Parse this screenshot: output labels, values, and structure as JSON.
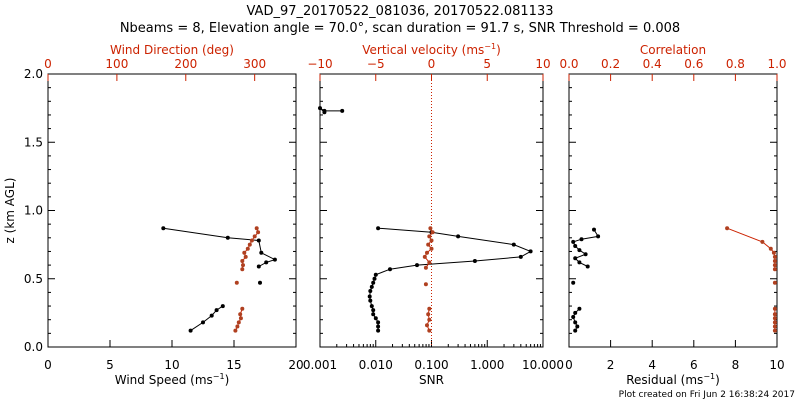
{
  "title_line1": "VAD_97_20170522_081036, 20170522.081133",
  "title_line2": "Nbeams = 8, Elevation angle = 70.0°, scan duration = 91.7 s, SNR Threshold = 0.008",
  "footer": "Plot created on Fri Jun  2 16:38:24 2017",
  "colors": {
    "black": "#000000",
    "red": "#cc2200",
    "point_red": "#b04020"
  },
  "chart_data": [
    {
      "type": "line",
      "panel": "wind",
      "ylabel": "z (km AGL)",
      "ylim": [
        0,
        2.0
      ],
      "y_ticks": [
        "0.0",
        "0.5",
        "1.0",
        "1.5",
        "2.0"
      ],
      "bottom_axis": {
        "label": "Wind Speed (ms",
        "label_sup": "−1",
        "label_end": ")",
        "range": [
          0,
          20
        ],
        "ticks": [
          "0",
          "5",
          "10",
          "15",
          "20"
        ]
      },
      "top_axis": {
        "label": "Wind Direction (deg)",
        "range": [
          0,
          360
        ],
        "ticks": [
          "0",
          "100",
          "200",
          "300"
        ]
      },
      "series": [
        {
          "values": "wind_speed",
          "segments": [
            [
              [
                11.5,
                0.12
              ],
              [
                12.5,
                0.18
              ],
              [
                13.2,
                0.23
              ],
              [
                13.6,
                0.27
              ],
              [
                14.1,
                0.3
              ]
            ],
            [
              [
                17.1,
                0.47
              ]
            ],
            [
              [
                17.0,
                0.59
              ],
              [
                17.6,
                0.62
              ],
              [
                18.3,
                0.64
              ],
              [
                17.2,
                0.69
              ],
              [
                17.0,
                0.78
              ],
              [
                14.5,
                0.8
              ],
              [
                9.3,
                0.87
              ]
            ]
          ]
        },
        {
          "values": "wind_direction",
          "segments": [
            [
              [
                272,
                0.12
              ],
              [
                275,
                0.15
              ],
              [
                277,
                0.18
              ],
              [
                280,
                0.21
              ],
              [
                279,
                0.24
              ],
              [
                282,
                0.28
              ]
            ],
            [
              [
                274,
                0.47
              ]
            ],
            [
              [
                282,
                0.57
              ],
              [
                283,
                0.6
              ],
              [
                282,
                0.63
              ],
              [
                287,
                0.66
              ],
              [
                285,
                0.69
              ],
              [
                290,
                0.72
              ],
              [
                293,
                0.75
              ],
              [
                296,
                0.78
              ],
              [
                300,
                0.81
              ],
              [
                305,
                0.84
              ],
              [
                303,
                0.87
              ]
            ]
          ]
        }
      ]
    },
    {
      "type": "line",
      "panel": "vertical",
      "bottom_axis": {
        "label": "SNR",
        "scale": "log",
        "range": [
          0.001,
          10
        ],
        "ticks": [
          "0.001",
          "0.010",
          "0.100",
          "1.000",
          "10.000"
        ]
      },
      "top_axis": {
        "label": "Vertical velocity (ms",
        "label_sup": "−1",
        "label_end": ")",
        "range": [
          -10,
          10
        ],
        "ticks": [
          "−10",
          "−5",
          "0",
          "5",
          "10"
        ]
      },
      "zero_line": 0,
      "series": [
        {
          "values": "snr",
          "segments": [
            [
              [
                0.0025,
                1.73
              ],
              [
                0.0012,
                1.73
              ],
              [
                0.001,
                1.75
              ],
              [
                0.0012,
                1.72
              ]
            ],
            [
              [
                0.011,
                0.12
              ],
              [
                0.011,
                0.15
              ],
              [
                0.011,
                0.18
              ],
              [
                0.01,
                0.21
              ],
              [
                0.009,
                0.24
              ],
              [
                0.009,
                0.27
              ],
              [
                0.0085,
                0.3
              ],
              [
                0.008,
                0.34
              ],
              [
                0.0078,
                0.37
              ],
              [
                0.008,
                0.41
              ],
              [
                0.0085,
                0.44
              ],
              [
                0.009,
                0.47
              ],
              [
                0.0095,
                0.5
              ],
              [
                0.01,
                0.53
              ],
              [
                0.018,
                0.57
              ],
              [
                0.055,
                0.6
              ],
              [
                0.6,
                0.63
              ],
              [
                4.0,
                0.66
              ],
              [
                6.0,
                0.7
              ],
              [
                3.0,
                0.75
              ],
              [
                0.3,
                0.81
              ],
              [
                0.1,
                0.84
              ],
              [
                0.011,
                0.87
              ]
            ]
          ]
        },
        {
          "values": "vertical_velocity",
          "segments": [
            [
              [
                -0.2,
                0.12
              ],
              [
                -0.4,
                0.16
              ],
              [
                -0.2,
                0.2
              ],
              [
                -0.3,
                0.24
              ],
              [
                -0.2,
                0.28
              ]
            ],
            [
              [
                -0.5,
                0.46
              ]
            ],
            [
              [
                -0.5,
                0.58
              ],
              [
                -0.2,
                0.62
              ],
              [
                -0.6,
                0.66
              ],
              [
                -0.4,
                0.69
              ],
              [
                0.0,
                0.72
              ],
              [
                -0.3,
                0.75
              ],
              [
                0.0,
                0.78
              ],
              [
                -0.2,
                0.81
              ],
              [
                0.1,
                0.84
              ],
              [
                -0.1,
                0.87
              ]
            ]
          ]
        }
      ]
    },
    {
      "type": "line",
      "panel": "residual",
      "bottom_axis": {
        "label": "Residual (ms",
        "label_sup": "−1",
        "label_end": ")",
        "range": [
          0,
          10
        ],
        "ticks": [
          "0",
          "2",
          "4",
          "6",
          "8",
          "10"
        ]
      },
      "top_axis": {
        "label": "Correlation",
        "range": [
          0,
          1
        ],
        "ticks": [
          "0.0",
          "0.2",
          "0.4",
          "0.6",
          "0.8",
          "1.0"
        ]
      },
      "series": [
        {
          "values": "residual",
          "segments": [
            [
              [
                0.3,
                0.12
              ],
              [
                0.4,
                0.15
              ],
              [
                0.3,
                0.18
              ],
              [
                0.2,
                0.22
              ],
              [
                0.3,
                0.25
              ],
              [
                0.5,
                0.28
              ]
            ],
            [
              [
                0.2,
                0.47
              ]
            ],
            [
              [
                0.9,
                0.59
              ],
              [
                0.5,
                0.62
              ],
              [
                0.3,
                0.65
              ],
              [
                0.8,
                0.68
              ],
              [
                0.5,
                0.71
              ],
              [
                0.3,
                0.74
              ],
              [
                0.2,
                0.77
              ],
              [
                0.6,
                0.79
              ],
              [
                1.4,
                0.81
              ],
              [
                1.2,
                0.86
              ]
            ]
          ]
        },
        {
          "values": "correlation",
          "segments": [
            [
              [
                0.99,
                0.12
              ],
              [
                0.99,
                0.15
              ],
              [
                0.99,
                0.18
              ],
              [
                0.99,
                0.21
              ],
              [
                0.99,
                0.24
              ],
              [
                0.99,
                0.28
              ]
            ],
            [
              [
                0.99,
                0.47
              ]
            ],
            [
              [
                0.99,
                0.57
              ],
              [
                0.99,
                0.6
              ],
              [
                0.99,
                0.63
              ],
              [
                0.99,
                0.66
              ],
              [
                0.985,
                0.69
              ],
              [
                0.97,
                0.72
              ],
              [
                0.93,
                0.77
              ],
              [
                0.76,
                0.87
              ]
            ]
          ]
        }
      ]
    }
  ]
}
